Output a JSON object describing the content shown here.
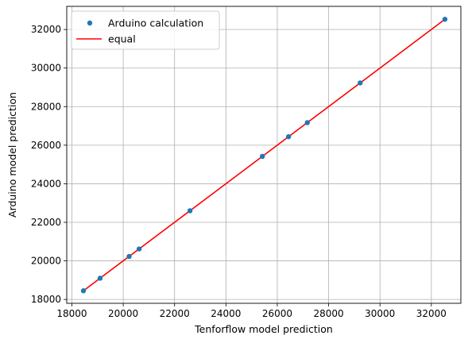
{
  "chart_data": {
    "type": "scatter",
    "title": "",
    "xlabel": "Tenforflow model prediction",
    "ylabel": "Arduino model prediction",
    "xlim": [
      17800,
      33150
    ],
    "ylim": [
      17800,
      33200
    ],
    "xticks": [
      18000,
      20000,
      22000,
      24000,
      26000,
      28000,
      30000,
      32000
    ],
    "yticks": [
      18000,
      20000,
      22000,
      24000,
      26000,
      28000,
      30000,
      32000
    ],
    "grid": true,
    "legend_position": "top-left",
    "series": [
      {
        "name": "Arduino calculation",
        "kind": "scatter",
        "color": "#1f77b4",
        "x": [
          18450,
          19100,
          20230,
          20620,
          22600,
          25420,
          26440,
          27170,
          29230,
          32530
        ],
        "y": [
          18450,
          19100,
          20230,
          20620,
          22600,
          25420,
          26440,
          27170,
          29230,
          32530
        ]
      },
      {
        "name": "equal",
        "kind": "line",
        "color": "#ff0000",
        "x": [
          18450,
          32530
        ],
        "y": [
          18450,
          32530
        ]
      }
    ]
  }
}
